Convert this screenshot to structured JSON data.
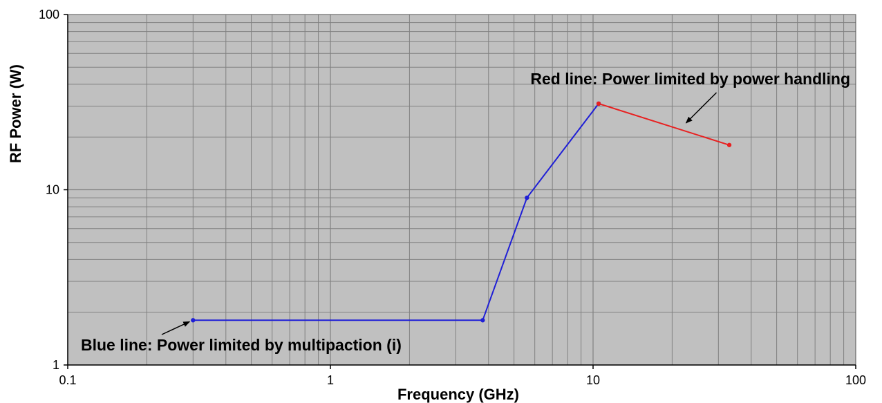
{
  "chart_data": {
    "type": "line",
    "xlabel": "Frequency (GHz)",
    "ylabel": "RF Power (W)",
    "xscale": "log",
    "yscale": "log",
    "xlim": [
      0.1,
      100
    ],
    "ylim": [
      1,
      100
    ],
    "grid": true,
    "x_tick_labels": [
      "0.1",
      "1",
      "10",
      "100"
    ],
    "y_tick_labels": [
      "1",
      "10",
      "100"
    ],
    "x_ticks": [
      0.1,
      1,
      10,
      100
    ],
    "y_ticks": [
      1,
      10,
      100
    ],
    "series": [
      {
        "color": "#1f1fd6",
        "x": [
          0.3,
          3.8,
          5.6,
          10.5
        ],
        "y": [
          1.8,
          1.8,
          9,
          31
        ]
      },
      {
        "color": "#e82020",
        "x": [
          10.5,
          33
        ],
        "y": [
          31,
          18
        ]
      }
    ],
    "annotations": [
      {
        "text": "Red line: Power limited by power handling"
      },
      {
        "text": "Blue line: Power limited by multipaction (i)"
      }
    ],
    "plot_background": "#c0c0c0",
    "grid_color": "#808080"
  }
}
